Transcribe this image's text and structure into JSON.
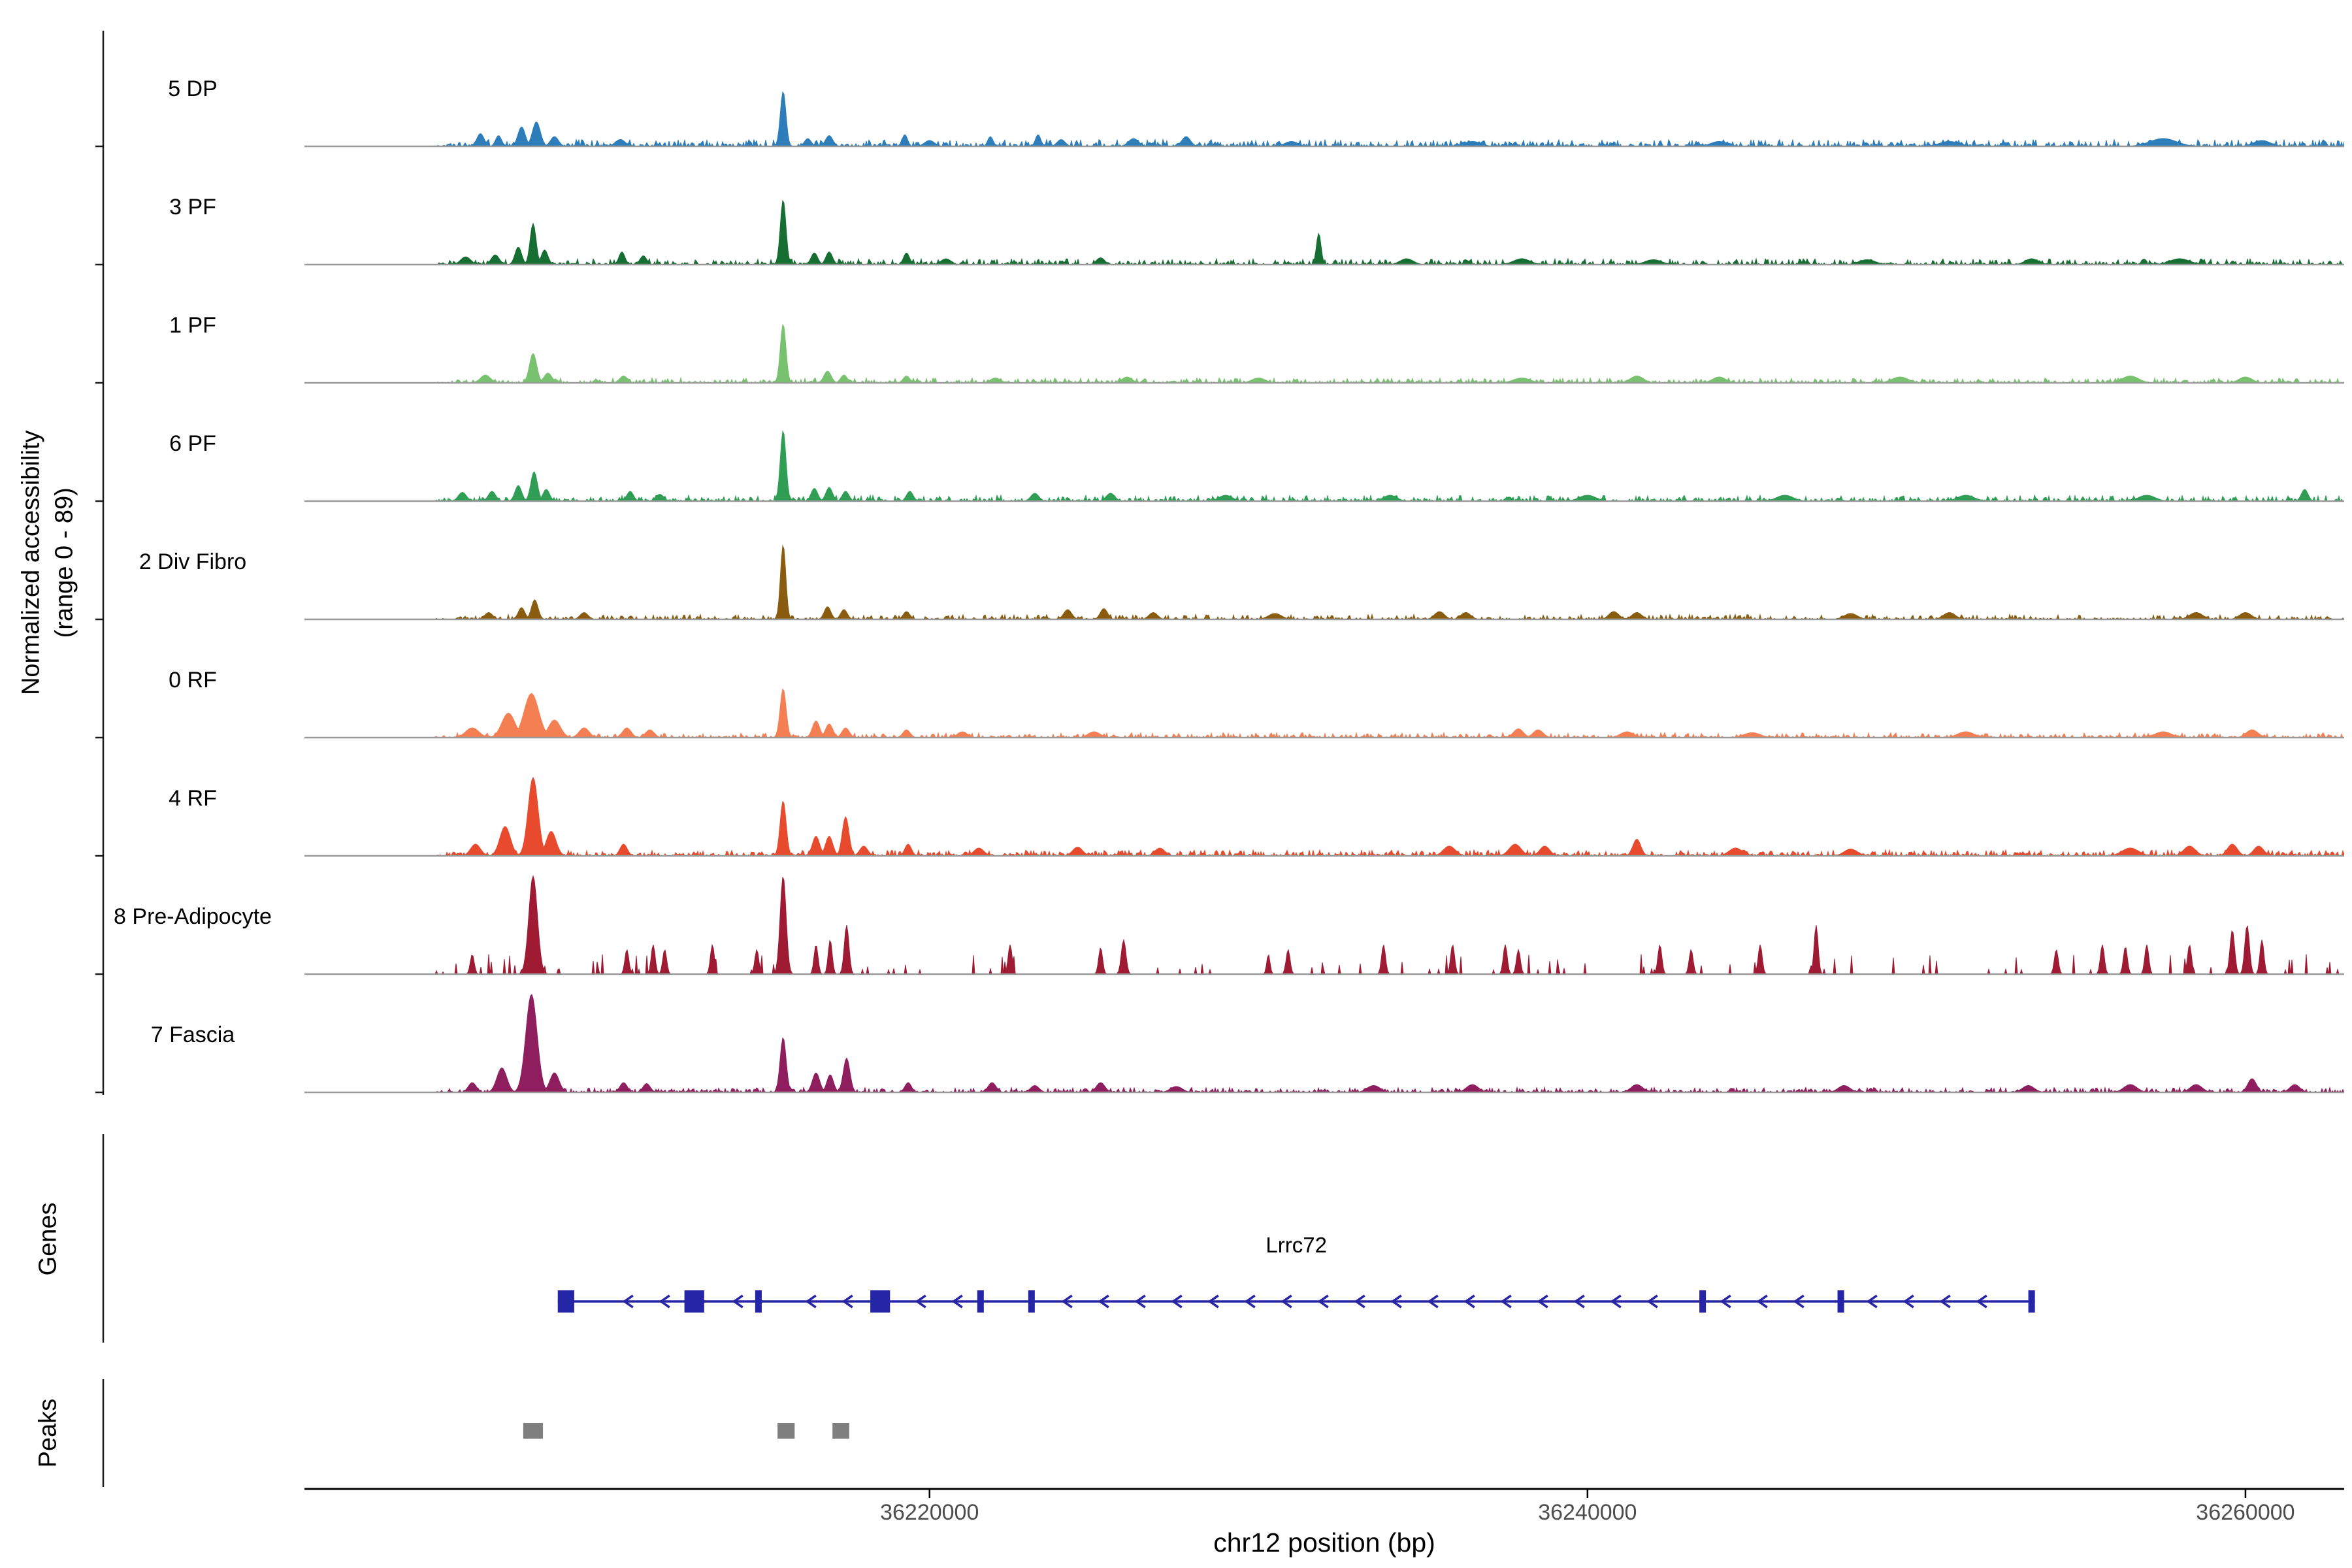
{
  "figure": {
    "ylabel_line1": "Normalized accessibility",
    "ylabel_line2": "(range 0 - 89)",
    "xlabel": "chr12 position (bp)",
    "genes_section": "Genes",
    "peaks_section": "Peaks"
  },
  "chart_data": {
    "type": "area",
    "title": "",
    "ylabel": "Normalized accessibility",
    "y_range_label": "(range 0 - 89)",
    "xlabel": "chr12 position (bp)",
    "ylim": [
      0,
      89
    ],
    "height_scale": "peak heights are fractions of y max (89)",
    "region": {
      "chrom": "chr12",
      "start": 36201000,
      "end": 36263000
    },
    "x_ticks": [
      36220000,
      36240000,
      36260000
    ],
    "sections": {
      "tracks": "Normalized accessibility",
      "genes": "Genes",
      "peaks": "Peaks"
    },
    "styles": {
      "baseline": "#999999",
      "axis": "#1a1a1a",
      "tick_label": "#4d4d4d",
      "gene": "#2525a8",
      "gene_label": "#000000",
      "peak_region": "#7f7f7f"
    },
    "tracks": [
      {
        "name": "5 DP",
        "color": "#2d7dbb",
        "seed": 101,
        "noise": [
          0.07,
          0.55
        ],
        "peaks": [
          [
            36206350,
            0.13,
            110
          ],
          [
            36206900,
            0.11,
            90
          ],
          [
            36207600,
            0.2,
            110
          ],
          [
            36208050,
            0.25,
            120
          ],
          [
            36208600,
            0.1,
            120
          ],
          [
            36210600,
            0.07,
            150
          ],
          [
            36215550,
            0.56,
            85
          ],
          [
            36216300,
            0.08,
            100
          ],
          [
            36216950,
            0.11,
            110
          ],
          [
            36219250,
            0.12,
            80
          ],
          [
            36220000,
            0.06,
            150
          ],
          [
            36221850,
            0.1,
            80
          ],
          [
            36223300,
            0.12,
            80
          ],
          [
            36224000,
            0.07,
            120
          ],
          [
            36226200,
            0.08,
            150
          ],
          [
            36227800,
            0.1,
            130
          ],
          [
            36231000,
            0.05,
            200
          ],
          [
            36236500,
            0.05,
            250
          ],
          [
            36244000,
            0.05,
            250
          ],
          [
            36251000,
            0.05,
            300
          ],
          [
            36257500,
            0.08,
            400
          ],
          [
            36260500,
            0.06,
            250
          ]
        ]
      },
      {
        "name": "3 PF",
        "color": "#176e32",
        "seed": 102,
        "noise": [
          0.06,
          0.5
        ],
        "peaks": [
          [
            36205900,
            0.08,
            150
          ],
          [
            36206800,
            0.1,
            120
          ],
          [
            36207500,
            0.18,
            100
          ],
          [
            36207950,
            0.42,
            90
          ],
          [
            36208300,
            0.15,
            100
          ],
          [
            36210650,
            0.13,
            90
          ],
          [
            36211300,
            0.09,
            100
          ],
          [
            36215550,
            0.66,
            85
          ],
          [
            36216500,
            0.12,
            100
          ],
          [
            36216950,
            0.13,
            100
          ],
          [
            36219300,
            0.12,
            90
          ],
          [
            36220500,
            0.06,
            150
          ],
          [
            36225200,
            0.07,
            120
          ],
          [
            36231830,
            0.32,
            70
          ],
          [
            36234500,
            0.06,
            200
          ],
          [
            36238000,
            0.06,
            250
          ],
          [
            36242000,
            0.05,
            250
          ],
          [
            36248500,
            0.05,
            250
          ],
          [
            36253500,
            0.06,
            200
          ],
          [
            36258000,
            0.06,
            300
          ]
        ]
      },
      {
        "name": "1 PF",
        "color": "#78c26f",
        "seed": 103,
        "noise": [
          0.05,
          0.5
        ],
        "peaks": [
          [
            36206500,
            0.08,
            150
          ],
          [
            36207950,
            0.3,
            110
          ],
          [
            36208400,
            0.1,
            120
          ],
          [
            36210700,
            0.07,
            120
          ],
          [
            36215550,
            0.6,
            85
          ],
          [
            36216900,
            0.12,
            110
          ],
          [
            36217400,
            0.08,
            100
          ],
          [
            36219300,
            0.07,
            100
          ],
          [
            36222000,
            0.05,
            150
          ],
          [
            36226000,
            0.06,
            150
          ],
          [
            36230000,
            0.05,
            200
          ],
          [
            36238000,
            0.05,
            250
          ],
          [
            36241500,
            0.07,
            200
          ],
          [
            36244000,
            0.06,
            200
          ],
          [
            36249500,
            0.06,
            250
          ],
          [
            36256500,
            0.07,
            250
          ],
          [
            36260000,
            0.06,
            200
          ]
        ]
      },
      {
        "name": "6 PF",
        "color": "#2f9e54",
        "seed": 104,
        "noise": [
          0.06,
          0.5
        ],
        "peaks": [
          [
            36205800,
            0.09,
            120
          ],
          [
            36206700,
            0.1,
            110
          ],
          [
            36207500,
            0.16,
            100
          ],
          [
            36207980,
            0.3,
            100
          ],
          [
            36208350,
            0.12,
            100
          ],
          [
            36210900,
            0.1,
            100
          ],
          [
            36211800,
            0.07,
            120
          ],
          [
            36215550,
            0.72,
            85
          ],
          [
            36216500,
            0.13,
            100
          ],
          [
            36216950,
            0.14,
            100
          ],
          [
            36217450,
            0.1,
            100
          ],
          [
            36219400,
            0.1,
            100
          ],
          [
            36223200,
            0.08,
            120
          ],
          [
            36225500,
            0.08,
            130
          ],
          [
            36229000,
            0.06,
            200
          ],
          [
            36234000,
            0.06,
            200
          ],
          [
            36240000,
            0.06,
            250
          ],
          [
            36246000,
            0.06,
            250
          ],
          [
            36251500,
            0.06,
            250
          ],
          [
            36257000,
            0.06,
            250
          ],
          [
            36261800,
            0.12,
            100
          ]
        ]
      },
      {
        "name": "2 Div Fibro",
        "color": "#8a5c10",
        "seed": 105,
        "noise": [
          0.05,
          0.45
        ],
        "peaks": [
          [
            36206600,
            0.07,
            120
          ],
          [
            36207600,
            0.12,
            100
          ],
          [
            36208000,
            0.2,
            100
          ],
          [
            36209500,
            0.07,
            120
          ],
          [
            36215550,
            0.76,
            80
          ],
          [
            36216900,
            0.13,
            100
          ],
          [
            36217400,
            0.1,
            100
          ],
          [
            36219300,
            0.08,
            100
          ],
          [
            36224200,
            0.1,
            120
          ],
          [
            36225300,
            0.11,
            110
          ],
          [
            36226800,
            0.07,
            130
          ],
          [
            36230500,
            0.06,
            200
          ],
          [
            36235500,
            0.08,
            150
          ],
          [
            36236300,
            0.07,
            150
          ],
          [
            36240800,
            0.08,
            150
          ],
          [
            36241500,
            0.07,
            150
          ],
          [
            36248000,
            0.06,
            200
          ],
          [
            36251000,
            0.07,
            180
          ],
          [
            36258500,
            0.07,
            200
          ],
          [
            36260000,
            0.07,
            180
          ]
        ]
      },
      {
        "name": "0 RF",
        "color": "#f47f53",
        "seed": 106,
        "noise": [
          0.05,
          0.5
        ],
        "peaks": [
          [
            36206100,
            0.1,
            200
          ],
          [
            36207200,
            0.25,
            200
          ],
          [
            36207900,
            0.45,
            220
          ],
          [
            36208600,
            0.18,
            180
          ],
          [
            36209500,
            0.1,
            150
          ],
          [
            36210800,
            0.1,
            130
          ],
          [
            36211500,
            0.08,
            130
          ],
          [
            36215550,
            0.5,
            90
          ],
          [
            36216550,
            0.17,
            110
          ],
          [
            36216950,
            0.14,
            110
          ],
          [
            36217450,
            0.1,
            110
          ],
          [
            36219300,
            0.08,
            110
          ],
          [
            36221000,
            0.06,
            150
          ],
          [
            36225000,
            0.06,
            180
          ],
          [
            36237900,
            0.09,
            150
          ],
          [
            36238500,
            0.08,
            150
          ],
          [
            36241200,
            0.06,
            200
          ],
          [
            36245000,
            0.05,
            250
          ],
          [
            36251500,
            0.06,
            250
          ],
          [
            36257500,
            0.06,
            250
          ],
          [
            36260200,
            0.08,
            180
          ]
        ]
      },
      {
        "name": "4 RF",
        "color": "#e84a2d",
        "seed": 107,
        "noise": [
          0.06,
          0.55
        ],
        "peaks": [
          [
            36206200,
            0.12,
            150
          ],
          [
            36207100,
            0.3,
            160
          ],
          [
            36207950,
            0.8,
            150
          ],
          [
            36208500,
            0.25,
            150
          ],
          [
            36210700,
            0.12,
            110
          ],
          [
            36215550,
            0.56,
            90
          ],
          [
            36216550,
            0.2,
            110
          ],
          [
            36216950,
            0.2,
            110
          ],
          [
            36217450,
            0.4,
            100
          ],
          [
            36218000,
            0.1,
            120
          ],
          [
            36219350,
            0.12,
            100
          ],
          [
            36221500,
            0.08,
            150
          ],
          [
            36224500,
            0.09,
            150
          ],
          [
            36227000,
            0.08,
            150
          ],
          [
            36235800,
            0.1,
            180
          ],
          [
            36237800,
            0.12,
            180
          ],
          [
            36238700,
            0.1,
            150
          ],
          [
            36241500,
            0.17,
            120
          ],
          [
            36244500,
            0.08,
            200
          ],
          [
            36248000,
            0.07,
            200
          ],
          [
            36256500,
            0.08,
            250
          ],
          [
            36258300,
            0.1,
            180
          ],
          [
            36259600,
            0.12,
            150
          ],
          [
            36260400,
            0.1,
            150
          ]
        ]
      },
      {
        "name": "8 Pre-Adipocyte",
        "color": "#9e1b33",
        "seed": 108,
        "noise": [
          0.22,
          0.07
        ],
        "peaks": [
          [
            36206100,
            0.2,
            60
          ],
          [
            36207950,
            1.0,
            130
          ],
          [
            36210800,
            0.25,
            60
          ],
          [
            36211600,
            0.3,
            60
          ],
          [
            36211950,
            0.25,
            60
          ],
          [
            36213400,
            0.3,
            60
          ],
          [
            36214750,
            0.25,
            60
          ],
          [
            36215550,
            1.0,
            90
          ],
          [
            36216550,
            0.3,
            60
          ],
          [
            36216980,
            0.35,
            60
          ],
          [
            36217480,
            0.5,
            70
          ],
          [
            36222450,
            0.3,
            60
          ],
          [
            36225200,
            0.27,
            60
          ],
          [
            36225900,
            0.35,
            70
          ],
          [
            36230300,
            0.2,
            50
          ],
          [
            36230900,
            0.25,
            60
          ],
          [
            36233800,
            0.3,
            60
          ],
          [
            36235900,
            0.3,
            60
          ],
          [
            36237500,
            0.3,
            60
          ],
          [
            36237900,
            0.25,
            60
          ],
          [
            36242200,
            0.3,
            60
          ],
          [
            36243150,
            0.25,
            60
          ],
          [
            36245250,
            0.3,
            60
          ],
          [
            36246950,
            0.5,
            60
          ],
          [
            36254250,
            0.25,
            60
          ],
          [
            36255650,
            0.3,
            60
          ],
          [
            36256350,
            0.28,
            60
          ],
          [
            36257000,
            0.3,
            60
          ],
          [
            36258300,
            0.3,
            60
          ],
          [
            36259600,
            0.45,
            70
          ],
          [
            36260050,
            0.5,
            70
          ],
          [
            36260500,
            0.35,
            60
          ]
        ]
      },
      {
        "name": "7 Fascia",
        "color": "#8e1e5e",
        "seed": 109,
        "noise": [
          0.05,
          0.55
        ],
        "peaks": [
          [
            36206100,
            0.1,
            120
          ],
          [
            36207000,
            0.25,
            150
          ],
          [
            36207900,
            1.0,
            170
          ],
          [
            36208600,
            0.2,
            140
          ],
          [
            36210700,
            0.1,
            110
          ],
          [
            36211400,
            0.09,
            110
          ],
          [
            36215550,
            0.56,
            90
          ],
          [
            36216550,
            0.2,
            110
          ],
          [
            36216980,
            0.18,
            100
          ],
          [
            36217480,
            0.35,
            100
          ],
          [
            36219350,
            0.1,
            100
          ],
          [
            36221900,
            0.1,
            120
          ],
          [
            36223200,
            0.07,
            130
          ],
          [
            36225200,
            0.1,
            130
          ],
          [
            36227500,
            0.06,
            180
          ],
          [
            36233500,
            0.07,
            200
          ],
          [
            36236500,
            0.08,
            180
          ],
          [
            36241500,
            0.08,
            180
          ],
          [
            36247800,
            0.07,
            180
          ],
          [
            36253400,
            0.07,
            180
          ],
          [
            36256500,
            0.08,
            200
          ],
          [
            36258500,
            0.08,
            180
          ],
          [
            36260200,
            0.14,
            130
          ],
          [
            36261500,
            0.08,
            150
          ]
        ]
      }
    ],
    "gene": {
      "name": "Lrrc72",
      "strand": "-",
      "start": 36208700,
      "end": 36253600,
      "exons": [
        [
          36208700,
          36209200
        ],
        [
          36212550,
          36213150
        ],
        [
          36214700,
          36214900
        ],
        [
          36218200,
          36218800
        ],
        [
          36221450,
          36221650
        ],
        [
          36223000,
          36223200
        ],
        [
          36243400,
          36243600
        ],
        [
          36247600,
          36247800
        ],
        [
          36253400,
          36253600
        ]
      ]
    },
    "peak_regions": [
      [
        36207650,
        36208250
      ],
      [
        36215380,
        36215900
      ],
      [
        36217050,
        36217560
      ]
    ]
  }
}
